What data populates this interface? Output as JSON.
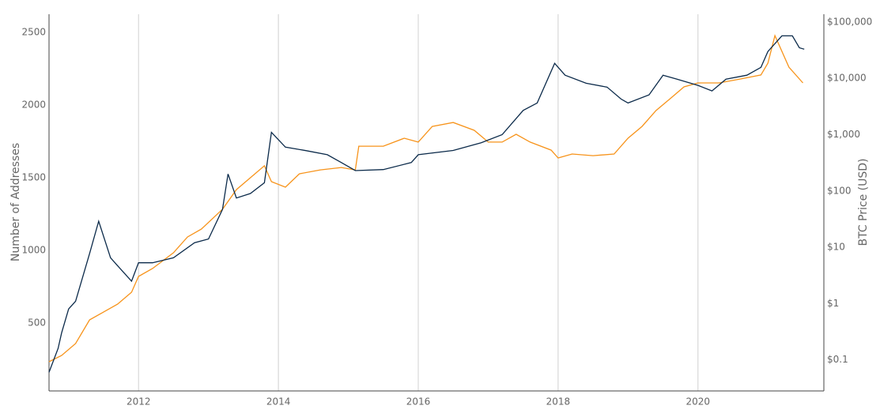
{
  "chart_data": {
    "type": "line",
    "y_label": "Number of Addresses",
    "y2_label": "BTC Price (USD)",
    "xlim": [
      2010.72,
      2021.8
    ],
    "xticks": [
      2012,
      2014,
      2016,
      2018,
      2020
    ],
    "ylim": [
      33,
      2625
    ],
    "yticks": [
      500,
      1000,
      1500,
      2000,
      2500
    ],
    "y2lim": [
      0.028,
      138000
    ],
    "y2log": true,
    "y2ticks": [
      {
        "value": 0.1,
        "label": "$0.1"
      },
      {
        "value": 1,
        "label": "$1"
      },
      {
        "value": 10,
        "label": "$10"
      },
      {
        "value": 100,
        "label": "$100"
      },
      {
        "value": 1000,
        "label": "$1,000"
      },
      {
        "value": 10000,
        "label": "$10,000"
      },
      {
        "value": 100000,
        "label": "$100,000"
      }
    ],
    "xgrid": true,
    "series": [
      {
        "color": "#f7931a",
        "x": [
          2010.72,
          2010.9,
          2011.1,
          2011.3,
          2011.5,
          2011.7,
          2011.9,
          2012.0,
          2012.2,
          2012.5,
          2012.7,
          2012.9,
          2013.2,
          2013.4,
          2013.6,
          2013.8,
          2013.9,
          2014.1,
          2014.3,
          2014.6,
          2014.9,
          2015.1,
          2015.15,
          2015.5,
          2015.8,
          2016.0,
          2016.2,
          2016.5,
          2016.8,
          2017.0,
          2017.2,
          2017.4,
          2017.6,
          2017.9,
          2018.0,
          2018.2,
          2018.5,
          2018.8,
          2019.0,
          2019.2,
          2019.4,
          2019.6,
          2019.8,
          2020.0,
          2020.3,
          2020.6,
          2020.9,
          2021.0,
          2021.1,
          2021.3,
          2021.5
        ],
        "values": [
          234,
          277,
          359,
          522,
          576,
          630,
          712,
          821,
          875,
          984,
          1092,
          1147,
          1283,
          1418,
          1500,
          1582,
          1473,
          1435,
          1527,
          1554,
          1570,
          1554,
          1717,
          1717,
          1772,
          1745,
          1853,
          1880,
          1826,
          1745,
          1745,
          1799,
          1745,
          1690,
          1636,
          1663,
          1652,
          1663,
          1772,
          1853,
          1962,
          2043,
          2125,
          2152,
          2152,
          2179,
          2207,
          2288,
          2478,
          2261,
          2152
        ]
      },
      {
        "color": "#0b2a4a",
        "axis": "y2",
        "x": [
          2010.72,
          2010.85,
          2010.9,
          2011.0,
          2011.1,
          2011.3,
          2011.43,
          2011.6,
          2011.7,
          2011.9,
          2012.0,
          2012.2,
          2012.5,
          2012.8,
          2013.0,
          2013.2,
          2013.28,
          2013.4,
          2013.6,
          2013.8,
          2013.9,
          2014.1,
          2014.4,
          2014.7,
          2014.9,
          2015.1,
          2015.5,
          2015.9,
          2016.0,
          2016.5,
          2016.9,
          2017.2,
          2017.5,
          2017.7,
          2017.95,
          2018.1,
          2018.4,
          2018.7,
          2018.9,
          2019.0,
          2019.3,
          2019.5,
          2019.7,
          2020.0,
          2020.2,
          2020.4,
          2020.7,
          2020.9,
          2021.0,
          2021.2,
          2021.35,
          2021.45,
          2021.52
        ],
        "values": [
          0.06,
          0.16,
          0.3,
          0.8,
          1.1,
          7.7,
          29,
          6.5,
          4.7,
          2.5,
          5.3,
          5.3,
          6.5,
          12,
          14,
          47,
          200,
          75,
          90,
          140,
          1100,
          600,
          520,
          440,
          320,
          230,
          240,
          320,
          440,
          525,
          720,
          1000,
          2700,
          3650,
          18500,
          11400,
          8200,
          7000,
          4300,
          3650,
          5100,
          11400,
          9700,
          7500,
          6000,
          9700,
          11400,
          15700,
          30000,
          57000,
          57000,
          35000,
          33000
        ]
      }
    ]
  }
}
